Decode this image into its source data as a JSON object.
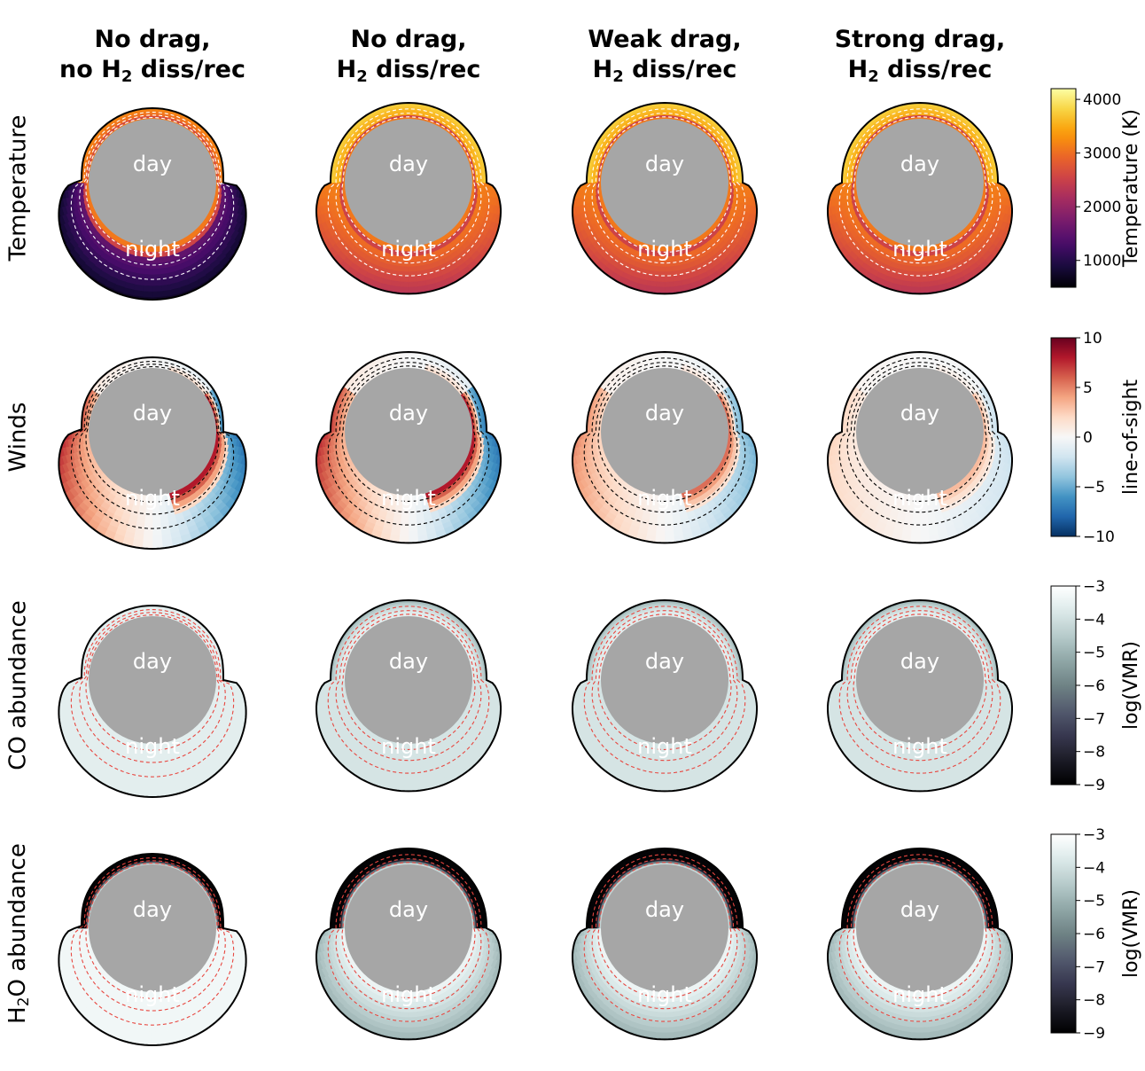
{
  "columns": [
    {
      "line1": "No drag,",
      "line2_pre": "no H",
      "line2_sub": "2",
      "line2_post": " diss/rec"
    },
    {
      "line1": "No drag,",
      "line2_pre": "H",
      "line2_sub": "2",
      "line2_post": " diss/rec"
    },
    {
      "line1": "Weak drag,",
      "line2_pre": "H",
      "line2_sub": "2",
      "line2_post": " diss/rec"
    },
    {
      "line1": "Strong drag,",
      "line2_pre": "H",
      "line2_sub": "2",
      "line2_post": " diss/rec"
    }
  ],
  "rows": [
    {
      "pre": "Temperature",
      "sub": "",
      "post": ""
    },
    {
      "pre": "Winds",
      "sub": "",
      "post": ""
    },
    {
      "pre": "CO abundance",
      "sub": "",
      "post": ""
    },
    {
      "pre": "H",
      "sub": "2",
      "post": "O abundance"
    }
  ],
  "panel_labels": {
    "day": "day",
    "night": "night"
  },
  "colors": {
    "core": "#a6a6a6",
    "contour_white": "#ffffff",
    "contour_black": "#000000",
    "contour_red": "#e8463f"
  },
  "chart_data": {
    "type": "heatmap",
    "colorbars": [
      {
        "label": "Temperature (K)",
        "ticks": [
          "4000",
          "3000",
          "2000",
          "1000"
        ],
        "tick_values": [
          4000,
          3000,
          2000,
          1000
        ],
        "range": [
          500,
          4200
        ],
        "colormap": "inferno"
      },
      {
        "label": "line-of-sight",
        "ticks": [
          "10",
          "5",
          "0",
          "−5",
          "−10"
        ],
        "tick_values": [
          10,
          5,
          0,
          -5,
          -10
        ],
        "range": [
          -10,
          10
        ],
        "colormap": "RdBu_r"
      },
      {
        "label": "log(VMR)",
        "ticks": [
          "−3",
          "−4",
          "−5",
          "−6",
          "−7",
          "−8",
          "−9"
        ],
        "tick_values": [
          -3,
          -4,
          -5,
          -6,
          -7,
          -8,
          -9
        ],
        "range": [
          -9,
          -3
        ],
        "colormap": "bone"
      },
      {
        "label": "log(VMR)",
        "ticks": [
          "−3",
          "−4",
          "−5",
          "−6",
          "−7",
          "−8",
          "−9"
        ],
        "tick_values": [
          -3,
          -4,
          -5,
          -6,
          -7,
          -8,
          -9
        ],
        "range": [
          -9,
          -3
        ],
        "colormap": "bone"
      }
    ]
  }
}
